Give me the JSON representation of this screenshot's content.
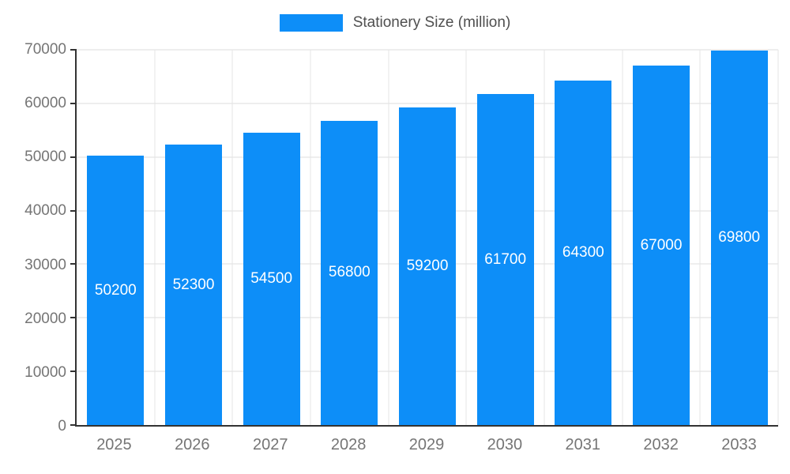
{
  "chart_data": {
    "type": "bar",
    "title": "Stationery Size (million)",
    "series": [
      {
        "name": "Stationery Size (million)",
        "values": [
          50200,
          52300,
          54500,
          56800,
          59200,
          61700,
          64300,
          67000,
          69800
        ]
      }
    ],
    "categories": [
      "2025",
      "2026",
      "2027",
      "2028",
      "2029",
      "2030",
      "2031",
      "2032",
      "2033"
    ],
    "values": [
      50200,
      52300,
      54500,
      56800,
      59200,
      61700,
      64300,
      67000,
      69800
    ],
    "bar_value_labels": [
      "50200",
      "52300",
      "54500",
      "56800",
      "59200",
      "61700",
      "64300",
      "67000",
      "69800"
    ],
    "xlabel": "",
    "ylabel": "",
    "ylim": [
      0,
      70000
    ],
    "yticks": [
      0,
      10000,
      20000,
      30000,
      40000,
      50000,
      60000,
      70000
    ],
    "ytick_labels": [
      "0",
      "10000",
      "20000",
      "30000",
      "40000",
      "50000",
      "60000",
      "70000"
    ],
    "grid": "horizontal and vertical gridlines on",
    "legend_position": "top-center",
    "colors": {
      "bar": "#0d8ef8",
      "bar_label_text": "#ffffff",
      "axis_text": "#757575",
      "legend_text": "#4f4f4f",
      "gridline": "#dcdcdc",
      "axis_line": "#333333",
      "background": "#ffffff"
    }
  },
  "legend": {
    "label": "Stationery Size (million)"
  }
}
